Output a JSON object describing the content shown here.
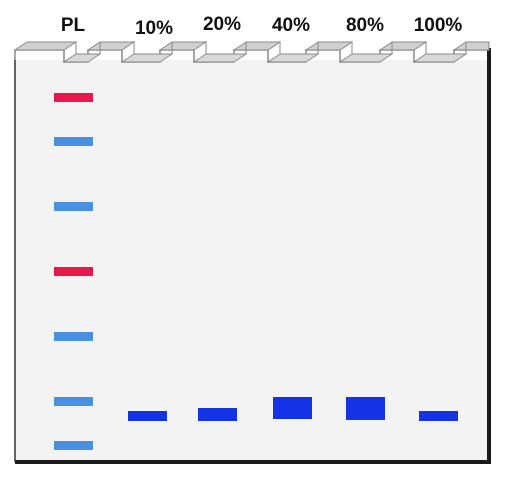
{
  "lanes": [
    {
      "label": "PL"
    },
    {
      "label": "10%"
    },
    {
      "label": "20%"
    },
    {
      "label": "40%"
    },
    {
      "label": "80%"
    },
    {
      "label": "100%"
    }
  ],
  "colors": {
    "gel_fill": "#f3f3f3",
    "gel_outline": "#1a1a1a",
    "well_top": "#d0d0d0",
    "well_outline": "#8a8a8a",
    "ladder_blue": "#4a90e2",
    "ladder_red": "#e8194a",
    "sample_band": "#1433e6"
  }
}
